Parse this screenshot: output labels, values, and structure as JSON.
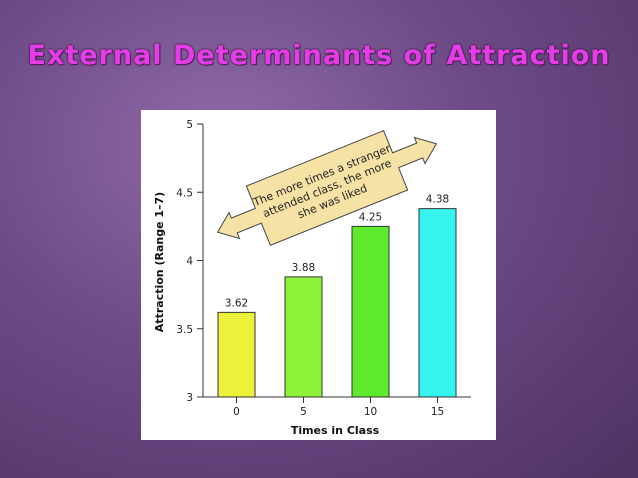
{
  "slide": {
    "title": "External Determinants of Attraction"
  },
  "colors": {
    "title": "#e43ce6",
    "bar_0": "#ecf23a",
    "bar_5": "#8ff23a",
    "bar_10": "#5eea2c",
    "bar_15": "#35f4ee",
    "annotation_fill": "#f7e2a6"
  },
  "chart_data": {
    "type": "bar",
    "categories": [
      "0",
      "5",
      "10",
      "15"
    ],
    "values": [
      3.62,
      3.88,
      4.25,
      4.38
    ],
    "value_labels": [
      "3.62",
      "3.88",
      "4.25",
      "4.38"
    ],
    "xlabel": "Times in Class",
    "ylabel": "Attraction (Range 1–7)",
    "ylim": [
      3,
      5
    ],
    "yticks": [
      "3",
      "3.5",
      "4",
      "4.5",
      "5"
    ],
    "grid": false,
    "annotation": {
      "lines": [
        "The more times a stranger",
        "attended class, the more",
        "she was liked"
      ]
    }
  }
}
